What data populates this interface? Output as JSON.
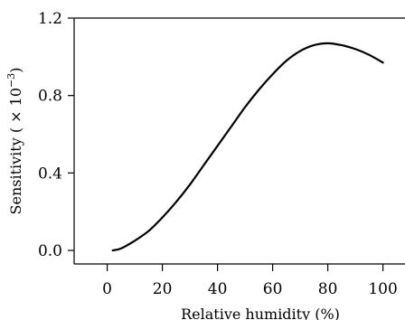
{
  "chart_data": {
    "type": "line",
    "xlabel": "Relative humidity (%)",
    "ylabel_main": "Sensitivity",
    "ylabel_unit_open": " ( × 10",
    "ylabel_unit_exp": "−3",
    "ylabel_unit_close": ")",
    "xlim": [
      -12,
      108
    ],
    "ylim": [
      -0.07,
      1.2
    ],
    "xticks": [
      0,
      20,
      40,
      60,
      80,
      100
    ],
    "yticks": [
      0.0,
      0.4,
      0.8,
      1.2
    ],
    "xtick_labels": [
      "0",
      "20",
      "40",
      "60",
      "80",
      "100"
    ],
    "ytick_labels": [
      "0.0",
      "0.4",
      "0.8",
      "1.2"
    ],
    "grid": false,
    "series": [
      {
        "x": [
          2,
          5,
          10,
          15,
          20,
          25,
          30,
          35,
          40,
          45,
          50,
          55,
          60,
          65,
          70,
          75,
          80,
          85,
          90,
          95,
          100
        ],
        "y": [
          0.0,
          0.01,
          0.05,
          0.1,
          0.17,
          0.25,
          0.34,
          0.44,
          0.54,
          0.64,
          0.74,
          0.83,
          0.91,
          0.98,
          1.03,
          1.06,
          1.07,
          1.06,
          1.04,
          1.01,
          0.97
        ]
      }
    ]
  }
}
